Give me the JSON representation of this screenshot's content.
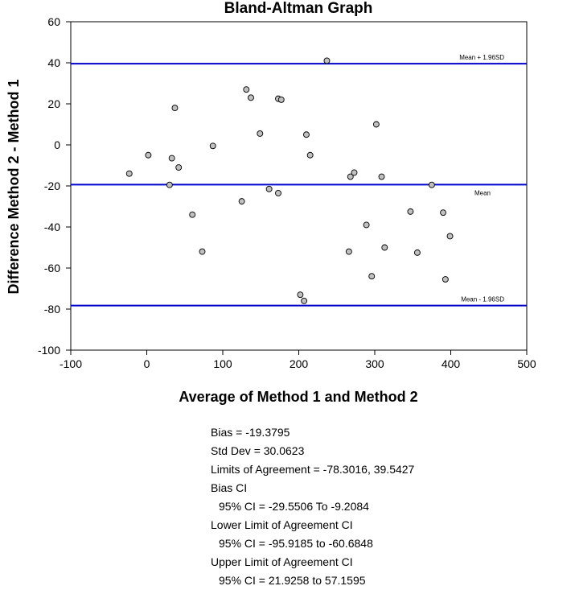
{
  "chart_data": {
    "type": "scatter",
    "title": "Bland-Altman Graph",
    "xlabel": "Average of Method 1 and Method 2",
    "ylabel": "Difference Method 2 - Method 1",
    "xlim": [
      -100,
      500
    ],
    "ylim": [
      -100,
      60
    ],
    "xticks": [
      -100,
      0,
      100,
      200,
      300,
      400,
      500
    ],
    "yticks": [
      -100,
      -80,
      -60,
      -40,
      -20,
      0,
      20,
      40,
      60
    ],
    "grid": false,
    "point_color": "#c0c0c0",
    "line_color": "#0000cc",
    "reference_lines": [
      {
        "label": "Mean + 1.96SD",
        "y": 39.5427
      },
      {
        "label": "Mean",
        "y": -19.3795
      },
      {
        "label": "Mean - 1.96SD",
        "y": -78.3016
      }
    ],
    "points": [
      {
        "x": -23,
        "y": -14
      },
      {
        "x": 2,
        "y": -5
      },
      {
        "x": 30,
        "y": -19.5
      },
      {
        "x": 33,
        "y": -6.5
      },
      {
        "x": 37,
        "y": 18
      },
      {
        "x": 42,
        "y": -11
      },
      {
        "x": 60,
        "y": -34
      },
      {
        "x": 73,
        "y": -52
      },
      {
        "x": 87,
        "y": -0.5
      },
      {
        "x": 125,
        "y": -27.5
      },
      {
        "x": 131,
        "y": 27
      },
      {
        "x": 137,
        "y": 23
      },
      {
        "x": 149,
        "y": 5.5
      },
      {
        "x": 161,
        "y": -21.5
      },
      {
        "x": 173,
        "y": -23.5
      },
      {
        "x": 173,
        "y": 22.5
      },
      {
        "x": 177,
        "y": 22
      },
      {
        "x": 202,
        "y": -73
      },
      {
        "x": 207,
        "y": -76
      },
      {
        "x": 210,
        "y": 5
      },
      {
        "x": 215,
        "y": -5
      },
      {
        "x": 237,
        "y": 41
      },
      {
        "x": 266,
        "y": -52
      },
      {
        "x": 268,
        "y": -15.5
      },
      {
        "x": 273,
        "y": -13.5
      },
      {
        "x": 289,
        "y": -39
      },
      {
        "x": 296,
        "y": -64
      },
      {
        "x": 302,
        "y": 10
      },
      {
        "x": 309,
        "y": -15.5
      },
      {
        "x": 313,
        "y": -50
      },
      {
        "x": 347,
        "y": -32.5
      },
      {
        "x": 356,
        "y": -52.5
      },
      {
        "x": 375,
        "y": -19.5
      },
      {
        "x": 390,
        "y": -33
      },
      {
        "x": 393,
        "y": -65.5
      },
      {
        "x": 399,
        "y": -44.5
      }
    ]
  },
  "stats": {
    "bias": "Bias = -19.3795",
    "std_dev": "Std Dev = 30.0623",
    "limits": "Limits of Agreement = -78.3016, 39.5427",
    "bias_ci_title": "Bias CI",
    "bias_ci": "95% CI = -29.5506 To -9.2084",
    "lower_ci_title": "Lower Limit of Agreement CI",
    "lower_ci": "95% CI = -95.9185 to -60.6848",
    "upper_ci_title": "Upper Limit of Agreement CI",
    "upper_ci": "95% CI = 21.9258 to 57.1595"
  }
}
